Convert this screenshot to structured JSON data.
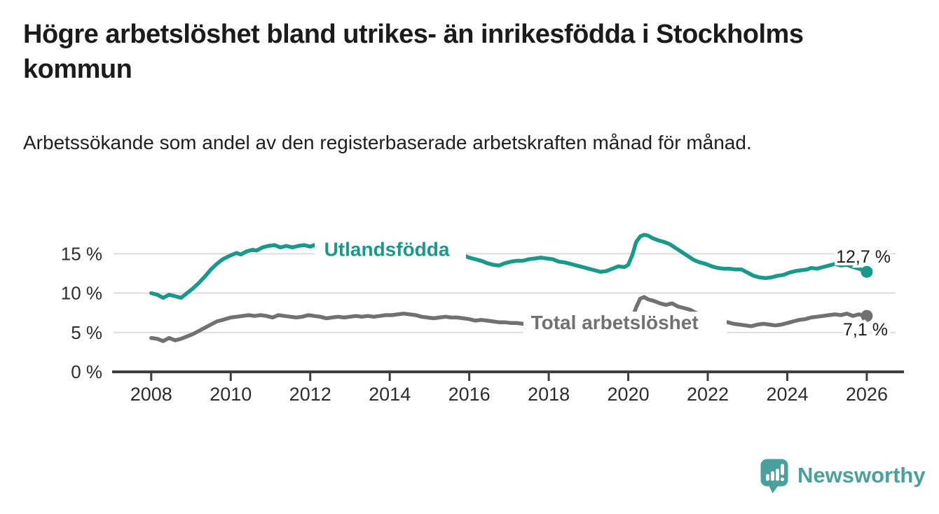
{
  "header": {
    "title": "Högre arbetslöshet bland utrikes- än inrikesfödda i Stockholms kommun",
    "subtitle": "Arbetssökande som andel av den registerbaserade arbetskraften månad för månad."
  },
  "colors": {
    "accent_teal": "#18998c",
    "series_gray": "#717171",
    "grid": "#dcdcdc",
    "axis": "#3e3e3e",
    "logo_teal": "#4aa19b"
  },
  "chart_data": {
    "type": "line",
    "title": "Högre arbetslöshet bland utrikes- än inrikesfödda i Stockholms kommun",
    "xlabel": "",
    "ylabel": "",
    "grid": "horizontal",
    "x_axis": {
      "ticks": [
        2008,
        2010,
        2012,
        2014,
        2016,
        2018,
        2020,
        2022,
        2024,
        2026
      ],
      "range": [
        2007.0,
        2026.95
      ]
    },
    "y_axis": {
      "unit": "%",
      "range": [
        0,
        20.5
      ],
      "gridlines": [
        5,
        10,
        15
      ],
      "ticks": [
        {
          "value": 0,
          "label": "0 %"
        },
        {
          "value": 5,
          "label": "5 %"
        },
        {
          "value": 10,
          "label": "10 %"
        },
        {
          "value": 15,
          "label": "15 %"
        }
      ]
    },
    "series": [
      {
        "name": "Utlandsfödda",
        "color": "#18998c",
        "end_label": "12,7 %",
        "end_value": 12.7,
        "label_pos": {
          "x": 2012.35,
          "y": 15.6
        },
        "points": [
          [
            2008.0,
            10.0
          ],
          [
            2008.15,
            9.8
          ],
          [
            2008.3,
            9.4
          ],
          [
            2008.45,
            9.8
          ],
          [
            2008.6,
            9.6
          ],
          [
            2008.75,
            9.4
          ],
          [
            2008.9,
            10.0
          ],
          [
            2009.05,
            10.6
          ],
          [
            2009.2,
            11.3
          ],
          [
            2009.35,
            12.1
          ],
          [
            2009.5,
            13.0
          ],
          [
            2009.65,
            13.7
          ],
          [
            2009.8,
            14.3
          ],
          [
            2010.0,
            14.8
          ],
          [
            2010.15,
            15.1
          ],
          [
            2010.25,
            14.9
          ],
          [
            2010.4,
            15.3
          ],
          [
            2010.55,
            15.5
          ],
          [
            2010.65,
            15.4
          ],
          [
            2010.8,
            15.8
          ],
          [
            2010.95,
            16.0
          ],
          [
            2011.1,
            16.1
          ],
          [
            2011.25,
            15.8
          ],
          [
            2011.4,
            16.0
          ],
          [
            2011.55,
            15.8
          ],
          [
            2011.7,
            16.0
          ],
          [
            2011.85,
            16.1
          ],
          [
            2012.0,
            15.9
          ],
          [
            2012.1,
            16.1
          ],
          [
            2012.2,
            15.7
          ],
          [
            2012.35,
            15.8
          ],
          [
            2012.55,
            15.9
          ],
          [
            2012.75,
            15.8
          ],
          [
            2012.95,
            15.9
          ],
          [
            2013.15,
            15.8
          ],
          [
            2013.35,
            15.9
          ],
          [
            2013.55,
            15.8
          ],
          [
            2013.75,
            15.6
          ],
          [
            2013.95,
            15.5
          ],
          [
            2014.15,
            15.4
          ],
          [
            2014.35,
            15.3
          ],
          [
            2014.55,
            15.3
          ],
          [
            2014.75,
            15.2
          ],
          [
            2014.95,
            15.1
          ],
          [
            2015.15,
            15.0
          ],
          [
            2015.35,
            14.9
          ],
          [
            2015.55,
            14.8
          ],
          [
            2015.75,
            14.8
          ],
          [
            2015.9,
            14.7
          ],
          [
            2016.0,
            14.5
          ],
          [
            2016.15,
            14.3
          ],
          [
            2016.3,
            14.1
          ],
          [
            2016.45,
            13.8
          ],
          [
            2016.6,
            13.6
          ],
          [
            2016.75,
            13.5
          ],
          [
            2016.9,
            13.8
          ],
          [
            2017.05,
            14.0
          ],
          [
            2017.2,
            14.1
          ],
          [
            2017.35,
            14.1
          ],
          [
            2017.5,
            14.3
          ],
          [
            2017.65,
            14.4
          ],
          [
            2017.8,
            14.5
          ],
          [
            2017.95,
            14.4
          ],
          [
            2018.1,
            14.3
          ],
          [
            2018.25,
            14.0
          ],
          [
            2018.4,
            13.9
          ],
          [
            2018.55,
            13.7
          ],
          [
            2018.7,
            13.5
          ],
          [
            2018.85,
            13.3
          ],
          [
            2019.0,
            13.1
          ],
          [
            2019.15,
            12.9
          ],
          [
            2019.3,
            12.7
          ],
          [
            2019.45,
            12.8
          ],
          [
            2019.6,
            13.1
          ],
          [
            2019.75,
            13.4
          ],
          [
            2019.9,
            13.3
          ],
          [
            2020.0,
            13.6
          ],
          [
            2020.1,
            14.8
          ],
          [
            2020.2,
            16.5
          ],
          [
            2020.3,
            17.2
          ],
          [
            2020.4,
            17.4
          ],
          [
            2020.5,
            17.3
          ],
          [
            2020.6,
            17.0
          ],
          [
            2020.75,
            16.7
          ],
          [
            2020.9,
            16.5
          ],
          [
            2021.05,
            16.2
          ],
          [
            2021.2,
            15.7
          ],
          [
            2021.35,
            15.2
          ],
          [
            2021.5,
            14.7
          ],
          [
            2021.65,
            14.2
          ],
          [
            2021.8,
            13.9
          ],
          [
            2021.95,
            13.7
          ],
          [
            2022.1,
            13.4
          ],
          [
            2022.25,
            13.2
          ],
          [
            2022.4,
            13.1
          ],
          [
            2022.55,
            13.1
          ],
          [
            2022.7,
            13.0
          ],
          [
            2022.85,
            13.0
          ],
          [
            2023.0,
            12.6
          ],
          [
            2023.15,
            12.2
          ],
          [
            2023.3,
            12.0
          ],
          [
            2023.45,
            11.9
          ],
          [
            2023.6,
            12.0
          ],
          [
            2023.75,
            12.2
          ],
          [
            2023.9,
            12.3
          ],
          [
            2024.05,
            12.6
          ],
          [
            2024.2,
            12.8
          ],
          [
            2024.35,
            12.9
          ],
          [
            2024.5,
            13.0
          ],
          [
            2024.6,
            13.2
          ],
          [
            2024.75,
            13.1
          ],
          [
            2024.9,
            13.3
          ],
          [
            2025.05,
            13.5
          ],
          [
            2025.2,
            13.7
          ],
          [
            2025.35,
            13.5
          ],
          [
            2025.5,
            13.6
          ],
          [
            2025.65,
            13.3
          ],
          [
            2025.8,
            13.1
          ],
          [
            2025.9,
            12.9
          ],
          [
            2026.0,
            12.7
          ]
        ]
      },
      {
        "name": "Total arbetslöshet",
        "color": "#717171",
        "end_label": "7,1 %",
        "end_value": 7.1,
        "label_pos": {
          "x": 2017.55,
          "y": 6.3
        },
        "points": [
          [
            2008.0,
            4.3
          ],
          [
            2008.15,
            4.2
          ],
          [
            2008.3,
            3.9
          ],
          [
            2008.45,
            4.3
          ],
          [
            2008.6,
            4.0
          ],
          [
            2008.75,
            4.2
          ],
          [
            2008.9,
            4.5
          ],
          [
            2009.05,
            4.8
          ],
          [
            2009.2,
            5.2
          ],
          [
            2009.35,
            5.6
          ],
          [
            2009.5,
            6.0
          ],
          [
            2009.65,
            6.4
          ],
          [
            2009.8,
            6.6
          ],
          [
            2010.0,
            6.9
          ],
          [
            2010.15,
            7.0
          ],
          [
            2010.3,
            7.1
          ],
          [
            2010.45,
            7.2
          ],
          [
            2010.6,
            7.1
          ],
          [
            2010.75,
            7.2
          ],
          [
            2010.9,
            7.1
          ],
          [
            2011.05,
            6.9
          ],
          [
            2011.2,
            7.2
          ],
          [
            2011.35,
            7.1
          ],
          [
            2011.5,
            7.0
          ],
          [
            2011.65,
            6.9
          ],
          [
            2011.8,
            7.0
          ],
          [
            2011.95,
            7.2
          ],
          [
            2012.1,
            7.1
          ],
          [
            2012.25,
            7.0
          ],
          [
            2012.4,
            6.8
          ],
          [
            2012.55,
            6.9
          ],
          [
            2012.7,
            7.0
          ],
          [
            2012.85,
            6.9
          ],
          [
            2013.0,
            7.0
          ],
          [
            2013.15,
            7.1
          ],
          [
            2013.3,
            7.0
          ],
          [
            2013.45,
            7.1
          ],
          [
            2013.6,
            7.0
          ],
          [
            2013.75,
            7.1
          ],
          [
            2013.9,
            7.2
          ],
          [
            2014.05,
            7.2
          ],
          [
            2014.2,
            7.3
          ],
          [
            2014.35,
            7.4
          ],
          [
            2014.5,
            7.3
          ],
          [
            2014.65,
            7.2
          ],
          [
            2014.8,
            7.0
          ],
          [
            2014.95,
            6.9
          ],
          [
            2015.1,
            6.8
          ],
          [
            2015.25,
            6.9
          ],
          [
            2015.4,
            7.0
          ],
          [
            2015.55,
            6.9
          ],
          [
            2015.7,
            6.9
          ],
          [
            2015.85,
            6.8
          ],
          [
            2016.0,
            6.7
          ],
          [
            2016.15,
            6.5
          ],
          [
            2016.3,
            6.6
          ],
          [
            2016.45,
            6.5
          ],
          [
            2016.6,
            6.4
          ],
          [
            2016.75,
            6.3
          ],
          [
            2016.9,
            6.3
          ],
          [
            2017.05,
            6.2
          ],
          [
            2017.2,
            6.2
          ],
          [
            2017.35,
            6.1
          ],
          [
            2017.5,
            6.0
          ],
          [
            2017.65,
            6.0
          ],
          [
            2017.8,
            5.9
          ],
          [
            2018.0,
            6.0
          ],
          [
            2018.2,
            5.9
          ],
          [
            2018.4,
            5.8
          ],
          [
            2018.6,
            5.9
          ],
          [
            2018.8,
            5.8
          ],
          [
            2019.0,
            5.8
          ],
          [
            2019.2,
            5.9
          ],
          [
            2019.4,
            5.9
          ],
          [
            2019.6,
            6.0
          ],
          [
            2019.8,
            6.1
          ],
          [
            2020.0,
            6.2
          ],
          [
            2020.1,
            6.8
          ],
          [
            2020.2,
            8.2
          ],
          [
            2020.3,
            9.3
          ],
          [
            2020.4,
            9.5
          ],
          [
            2020.5,
            9.2
          ],
          [
            2020.65,
            9.0
          ],
          [
            2020.8,
            8.7
          ],
          [
            2020.95,
            8.5
          ],
          [
            2021.1,
            8.7
          ],
          [
            2021.25,
            8.3
          ],
          [
            2021.4,
            8.1
          ],
          [
            2021.55,
            7.9
          ],
          [
            2021.7,
            7.5
          ],
          [
            2021.85,
            7.2
          ],
          [
            2022.0,
            6.9
          ],
          [
            2022.2,
            6.6
          ],
          [
            2022.35,
            6.4
          ],
          [
            2022.5,
            6.3
          ],
          [
            2022.65,
            6.1
          ],
          [
            2022.8,
            6.0
          ],
          [
            2022.95,
            5.9
          ],
          [
            2023.1,
            5.8
          ],
          [
            2023.25,
            6.0
          ],
          [
            2023.4,
            6.1
          ],
          [
            2023.55,
            6.0
          ],
          [
            2023.7,
            5.9
          ],
          [
            2023.85,
            6.0
          ],
          [
            2024.0,
            6.2
          ],
          [
            2024.15,
            6.4
          ],
          [
            2024.3,
            6.6
          ],
          [
            2024.45,
            6.7
          ],
          [
            2024.6,
            6.9
          ],
          [
            2024.75,
            7.0
          ],
          [
            2024.9,
            7.1
          ],
          [
            2025.05,
            7.2
          ],
          [
            2025.2,
            7.3
          ],
          [
            2025.35,
            7.2
          ],
          [
            2025.5,
            7.4
          ],
          [
            2025.65,
            7.1
          ],
          [
            2025.8,
            7.3
          ],
          [
            2026.0,
            7.1
          ]
        ]
      }
    ]
  },
  "footer": {
    "brand": "Newsworthy",
    "logo_icon": "bar-chart-speech-bubble-icon"
  }
}
